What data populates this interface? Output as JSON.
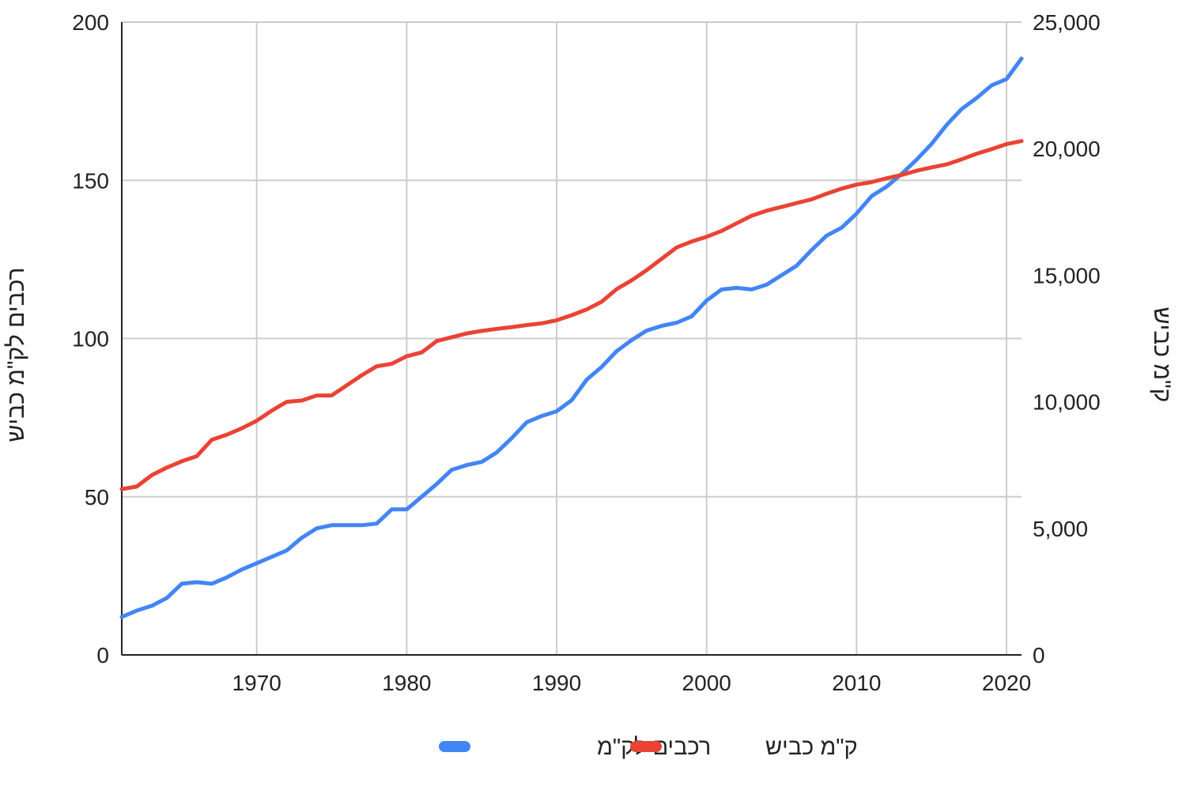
{
  "chart_data": {
    "type": "line",
    "title": "",
    "xlabel": "",
    "ylabel_left": "רכבים לק\"מ כביש",
    "ylabel_right": "ק\"מ כביש",
    "xlim": [
      1961,
      2021
    ],
    "x_ticks": [
      1970,
      1980,
      1990,
      2000,
      2010,
      2020
    ],
    "ylim_left": [
      0,
      200
    ],
    "y_ticks_left": [
      0,
      50,
      100,
      150,
      200
    ],
    "ylim_right": [
      0,
      25000
    ],
    "y_ticks_right": [
      0,
      5000,
      10000,
      15000,
      20000,
      25000
    ],
    "y_tick_labels_right": [
      "0",
      "5,000",
      "10,000",
      "15,000",
      "20,000",
      "25,000"
    ],
    "grid": true,
    "legend_position": "bottom",
    "x": [
      1961,
      1962,
      1963,
      1964,
      1965,
      1966,
      1967,
      1968,
      1969,
      1970,
      1971,
      1972,
      1973,
      1974,
      1975,
      1976,
      1977,
      1978,
      1979,
      1980,
      1981,
      1982,
      1983,
      1984,
      1985,
      1986,
      1987,
      1988,
      1989,
      1990,
      1991,
      1992,
      1993,
      1994,
      1995,
      1996,
      1997,
      1998,
      1999,
      2000,
      2001,
      2002,
      2003,
      2004,
      2005,
      2006,
      2007,
      2008,
      2009,
      2010,
      2011,
      2012,
      2013,
      2014,
      2015,
      2016,
      2017,
      2018,
      2019,
      2020,
      2021
    ],
    "series": [
      {
        "name": "רכבים לק\"מ",
        "axis": "left",
        "color": "#4285f4",
        "values": [
          12,
          14,
          15.5,
          18,
          22.5,
          23,
          22.5,
          24.5,
          27,
          29,
          31,
          33,
          37,
          40,
          41,
          41,
          41,
          41.5,
          46,
          46,
          50,
          54,
          58.5,
          60,
          61,
          64,
          68.5,
          73.5,
          75.5,
          77,
          80.5,
          87,
          91,
          96,
          99.5,
          102.5,
          104,
          105,
          107,
          112,
          115.5,
          116,
          115.5,
          117,
          120,
          123,
          128,
          132.5,
          135,
          139.5,
          145,
          148,
          152,
          156.5,
          161.5,
          167.5,
          172.5,
          176,
          180,
          182,
          188.5
        ]
      },
      {
        "name": "ק\"מ כביש",
        "axis": "right",
        "color": "#ea4335",
        "values": [
          6550,
          6650,
          7100,
          7400,
          7650,
          7850,
          8500,
          8700,
          8950,
          9250,
          9650,
          10000,
          10050,
          10250,
          10250,
          10650,
          11050,
          11400,
          11500,
          11800,
          11950,
          12400,
          12550,
          12700,
          12800,
          12880,
          12950,
          13030,
          13100,
          13220,
          13420,
          13650,
          13950,
          14450,
          14800,
          15200,
          15650,
          16100,
          16330,
          16520,
          16750,
          17050,
          17350,
          17550,
          17700,
          17850,
          18000,
          18220,
          18420,
          18580,
          18680,
          18830,
          18960,
          19130,
          19260,
          19380,
          19580,
          19800,
          19980,
          20180,
          20300
        ]
      }
    ]
  }
}
